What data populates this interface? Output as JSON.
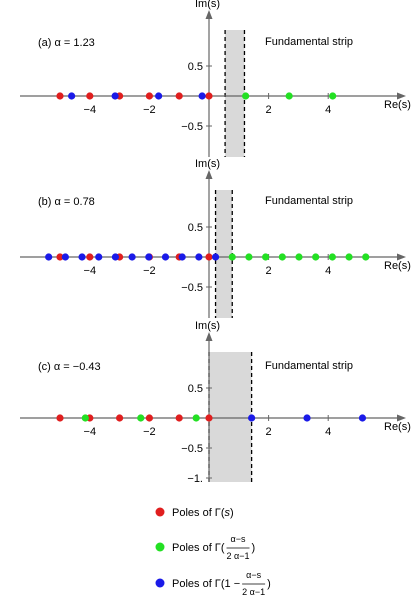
{
  "colors": {
    "red": "#e01e1e",
    "green": "#23e023",
    "blue": "#1a1ae8",
    "strip_fill": "#d9d9d9",
    "axis": "#666666"
  },
  "chart_data": [
    {
      "type": "scatter",
      "panel_label": "(a) α = 1.23",
      "strip_label": "Fundamental strip",
      "xlabel": "Re(s)",
      "ylabel": "Im(s)",
      "xlim": [
        -5.3,
        5.3
      ],
      "ylim": [
        -0.8,
        1.0
      ],
      "x_ticks": [
        -4,
        -2,
        2,
        4
      ],
      "x_tick_labels": [
        "−4",
        "−2",
        "2",
        "4"
      ],
      "y_ticks": [
        0.5,
        -0.5
      ],
      "y_tick_labels": [
        "0.5",
        "−0.5"
      ],
      "strip": [
        0.54,
        1.19
      ],
      "series": [
        {
          "name": "Poles of Γ(s)",
          "color": "red",
          "x": [
            0,
            -1,
            -2,
            -3,
            -4,
            -5
          ]
        },
        {
          "name": "Poles of Γ((α−s)/(2α−1))",
          "color": "green",
          "x": [
            1.23,
            2.69,
            4.15
          ]
        },
        {
          "name": "Poles of Γ(1 − (α−s)/(2α−1))",
          "color": "blue",
          "x": [
            -0.23,
            -1.69,
            -3.15,
            -4.61
          ]
        }
      ]
    },
    {
      "type": "scatter",
      "panel_label": "(b) α = 0.78",
      "strip_label": "Fundamental strip",
      "xlabel": "Re(s)",
      "ylabel": "Im(s)",
      "xlim": [
        -5.3,
        5.3
      ],
      "ylim": [
        -0.8,
        1.0
      ],
      "x_ticks": [
        -4,
        -2,
        2,
        4
      ],
      "x_tick_labels": [
        "−4",
        "−2",
        "2",
        "4"
      ],
      "y_ticks": [
        0.5,
        -0.5
      ],
      "y_tick_labels": [
        "0.5",
        "−0.5"
      ],
      "strip": [
        0.22,
        0.78
      ],
      "series": [
        {
          "name": "Poles of Γ(s)",
          "color": "red",
          "x": [
            0,
            -1,
            -2,
            -3,
            -4,
            -5
          ]
        },
        {
          "name": "Poles of Γ((α−s)/(2α−1))",
          "color": "green",
          "x": [
            0.78,
            1.34,
            1.9,
            2.46,
            3.02,
            3.58,
            4.14,
            4.7,
            5.26
          ]
        },
        {
          "name": "Poles of Γ(1 − (α−s)/(2α−1))",
          "color": "blue",
          "x": [
            0.22,
            -0.34,
            -0.9,
            -1.46,
            -2.02,
            -2.58,
            -3.14,
            -3.7,
            -4.26,
            -4.82,
            -5.38
          ]
        }
      ]
    },
    {
      "type": "scatter",
      "panel_label": "(c) α = −0.43",
      "strip_label": "Fundamental strip",
      "xlabel": "Re(s)",
      "ylabel": "Im(s)",
      "xlim": [
        -5.3,
        5.3
      ],
      "ylim": [
        -1.08,
        1.0
      ],
      "x_ticks": [
        -4,
        -2,
        2,
        4
      ],
      "x_tick_labels": [
        "−4",
        "−2",
        "2",
        "4"
      ],
      "y_ticks": [
        0.5,
        -0.5,
        -1
      ],
      "y_tick_labels": [
        "0.5",
        "−0.5",
        "−1."
      ],
      "strip": [
        0,
        1.43
      ],
      "series": [
        {
          "name": "Poles of Γ(s)",
          "color": "red",
          "x": [
            0,
            -1,
            -2,
            -3,
            -4,
            -5
          ]
        },
        {
          "name": "Poles of Γ((α−s)/(2α−1))",
          "color": "green",
          "x": [
            -0.43,
            -2.29,
            -4.15
          ]
        },
        {
          "name": "Poles of Γ(1 − (α−s)/(2α−1))",
          "color": "blue",
          "x": [
            1.43,
            3.29,
            5.15
          ]
        }
      ]
    }
  ],
  "legend": [
    {
      "color": "red",
      "prefix": "Poles of Γ(",
      "arg": "s",
      "suffix": ")"
    },
    {
      "color": "green",
      "prefix": "Poles of Γ(",
      "num": "α−s",
      "den": "2 α−1",
      "suffix": ")"
    },
    {
      "color": "blue",
      "prefix": "Poles of Γ(1 − ",
      "num": "α−s",
      "den": "2 α−1",
      "suffix": ")"
    }
  ]
}
